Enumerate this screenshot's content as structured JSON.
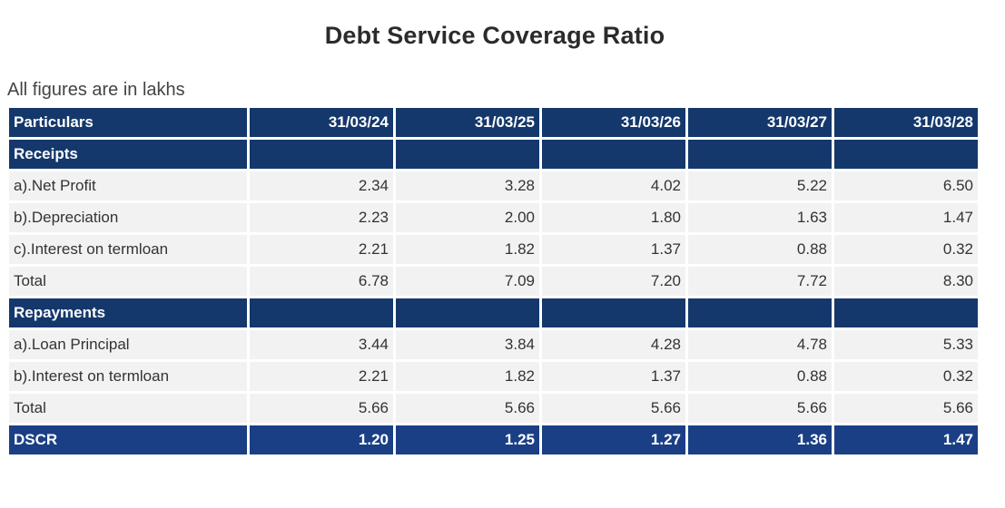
{
  "title": "Debt Service Coverage Ratio",
  "subtitle": "All figures are in lakhs",
  "table": {
    "header": [
      "Particulars",
      "31/03/24",
      "31/03/25",
      "31/03/26",
      "31/03/27",
      "31/03/28"
    ],
    "rows": [
      {
        "kind": "section",
        "label": "Receipts",
        "values": [
          "",
          "",
          "",
          "",
          ""
        ]
      },
      {
        "kind": "data",
        "label": "a).Net Profit",
        "values": [
          "2.34",
          "3.28",
          "4.02",
          "5.22",
          "6.50"
        ]
      },
      {
        "kind": "data",
        "label": "b).Depreciation",
        "values": [
          "2.23",
          "2.00",
          "1.80",
          "1.63",
          "1.47"
        ]
      },
      {
        "kind": "data",
        "label": "c).Interest on termloan",
        "values": [
          "2.21",
          "1.82",
          "1.37",
          "0.88",
          "0.32"
        ]
      },
      {
        "kind": "data",
        "label": "Total",
        "values": [
          "6.78",
          "7.09",
          "7.20",
          "7.72",
          "8.30"
        ]
      },
      {
        "kind": "section",
        "label": "Repayments",
        "values": [
          "",
          "",
          "",
          "",
          ""
        ]
      },
      {
        "kind": "data",
        "label": "a).Loan Principal",
        "values": [
          "3.44",
          "3.84",
          "4.28",
          "4.78",
          "5.33"
        ]
      },
      {
        "kind": "data",
        "label": "b).Interest on termloan",
        "values": [
          "2.21",
          "1.82",
          "1.37",
          "0.88",
          "0.32"
        ]
      },
      {
        "kind": "data",
        "label": "Total",
        "values": [
          "5.66",
          "5.66",
          "5.66",
          "5.66",
          "5.66"
        ]
      },
      {
        "kind": "dscr",
        "label": "DSCR",
        "values": [
          "1.20",
          "1.25",
          "1.27",
          "1.36",
          "1.47"
        ]
      }
    ]
  },
  "colors": {
    "header_bg": "#14386b",
    "dscr_bg": "#1a3f85",
    "row_bg": "#f2f2f2"
  }
}
